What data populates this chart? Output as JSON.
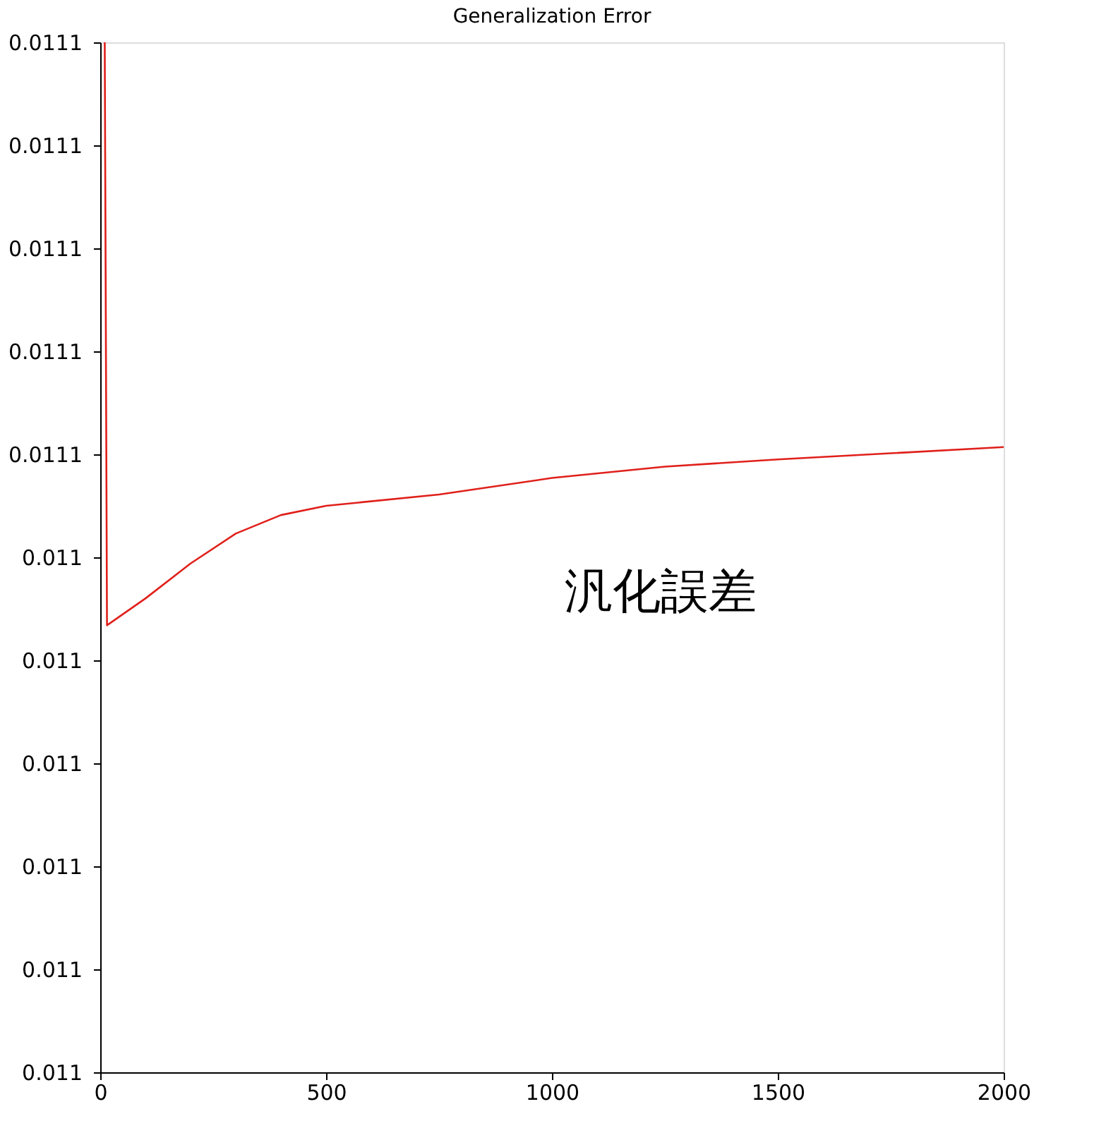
{
  "chart_data": {
    "type": "line",
    "title": "Generalization Error",
    "x": [
      10,
      15,
      100,
      200,
      300,
      400,
      500,
      750,
      1000,
      1250,
      1500,
      1750,
      2000
    ],
    "series": [
      {
        "name": "汎化誤差",
        "color": "#e0201b",
        "values": [
          0.0111,
          0.0110434,
          0.011046,
          0.0110494,
          0.0110523,
          0.0110541,
          0.011055,
          0.0110561,
          0.0110577,
          0.0110588,
          0.0110595,
          0.0110601,
          0.0110607
        ]
      }
    ],
    "xlim": [
      0,
      2000
    ],
    "xticks": [
      0,
      500,
      1000,
      1500,
      2000
    ],
    "ylim": [
      0.011,
      0.0111
    ],
    "yticks": [
      {
        "value": 0.011,
        "label": "0.011"
      },
      {
        "value": 0.01101,
        "label": "0.011"
      },
      {
        "value": 0.01102,
        "label": "0.011"
      },
      {
        "value": 0.01103,
        "label": "0.011"
      },
      {
        "value": 0.01104,
        "label": "0.011"
      },
      {
        "value": 0.01105,
        "label": "0.011"
      },
      {
        "value": 0.01106,
        "label": "0.0111"
      },
      {
        "value": 0.01107,
        "label": "0.0111"
      },
      {
        "value": 0.01108,
        "label": "0.0111"
      },
      {
        "value": 0.01109,
        "label": "0.0111"
      },
      {
        "value": 0.0111,
        "label": "0.0111"
      }
    ],
    "grid": false,
    "marker": "none",
    "line_style": "solid"
  }
}
